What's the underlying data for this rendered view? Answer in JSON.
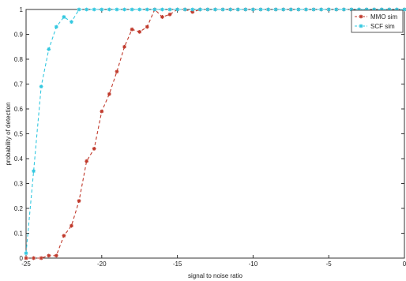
{
  "chart_data": {
    "type": "line",
    "xlabel": "signal to noise ratio",
    "ylabel": "probability of detection",
    "xlim": [
      -25,
      0
    ],
    "ylim": [
      0,
      1
    ],
    "x_ticks": [
      -25,
      -20,
      -15,
      -10,
      -5,
      0
    ],
    "x_tick_labels": [
      "-25",
      "-20",
      "-15",
      "-10",
      "-5",
      "0"
    ],
    "y_ticks": [
      0,
      0.1,
      0.2,
      0.3,
      0.4,
      0.5,
      0.6,
      0.7,
      0.8,
      0.9,
      1
    ],
    "y_tick_labels": [
      "0",
      "0.1",
      "0.2",
      "0.3",
      "0.4",
      "0.5",
      "0.6",
      "0.7",
      "0.8",
      "0.9",
      "1"
    ],
    "grid": false,
    "legend_position": "top-right",
    "series": [
      {
        "name": "MMO sim",
        "color": "#c0392b",
        "line_style": "dashed",
        "marker": "star",
        "x": [
          -25,
          -24.5,
          -24,
          -23.5,
          -23,
          -22.5,
          -22,
          -21.5,
          -21,
          -20.5,
          -20,
          -19.5,
          -19,
          -18.5,
          -18,
          -17.5,
          -17,
          -16.5,
          -16,
          -15.5,
          -15,
          -14.5,
          -14,
          -13.5,
          -13,
          -12.5,
          -12,
          -11.5,
          -11,
          -10.5,
          -10,
          -9.5,
          -9,
          -8.5,
          -8,
          -7.5,
          -7,
          -6.5,
          -6,
          -5.5,
          -5,
          -4.5,
          -4,
          -3.5,
          -3,
          -2.5,
          -2,
          -1.5,
          -1,
          -0.5,
          0
        ],
        "y": [
          0,
          0,
          0,
          0.01,
          0.01,
          0.09,
          0.13,
          0.23,
          0.39,
          0.44,
          0.59,
          0.66,
          0.75,
          0.85,
          0.92,
          0.91,
          0.93,
          1.0,
          0.97,
          0.98,
          1.0,
          1.0,
          0.99,
          1.0,
          1.0,
          1.0,
          1.0,
          1.0,
          1.0,
          1.0,
          1.0,
          1.0,
          1.0,
          1.0,
          1.0,
          1.0,
          1.0,
          1.0,
          1.0,
          1.0,
          1.0,
          1.0,
          1.0,
          1.0,
          1.0,
          1.0,
          1.0,
          1.0,
          1.0,
          1.0,
          1.0
        ]
      },
      {
        "name": "SCF sim",
        "color": "#33c8e0",
        "line_style": "dashed",
        "marker": "star",
        "x": [
          -25,
          -24.5,
          -24,
          -23.5,
          -23,
          -22.5,
          -22,
          -21.5,
          -21,
          -20.5,
          -20,
          -19.5,
          -19,
          -18.5,
          -18,
          -17.5,
          -17,
          -16.5,
          -16,
          -15.5,
          -15,
          -14.5,
          -14,
          -13.5,
          -13,
          -12.5,
          -12,
          -11.5,
          -11,
          -10.5,
          -10,
          -9.5,
          -9,
          -8.5,
          -8,
          -7.5,
          -7,
          -6.5,
          -6,
          -5.5,
          -5,
          -4.5,
          -4,
          -3.5,
          -3,
          -2.5,
          -2,
          -1.5,
          -1,
          -0.5,
          0
        ],
        "y": [
          0.02,
          0.35,
          0.69,
          0.84,
          0.93,
          0.97,
          0.95,
          1.0,
          1.0,
          1.0,
          1.0,
          1.0,
          1.0,
          1.0,
          1.0,
          1.0,
          1.0,
          1.0,
          1.0,
          1.0,
          1.0,
          1.0,
          1.0,
          1.0,
          1.0,
          1.0,
          1.0,
          1.0,
          1.0,
          1.0,
          1.0,
          1.0,
          1.0,
          1.0,
          1.0,
          1.0,
          1.0,
          1.0,
          1.0,
          1.0,
          1.0,
          1.0,
          1.0,
          1.0,
          1.0,
          1.0,
          1.0,
          1.0,
          1.0,
          1.0,
          1.0
        ]
      }
    ]
  }
}
